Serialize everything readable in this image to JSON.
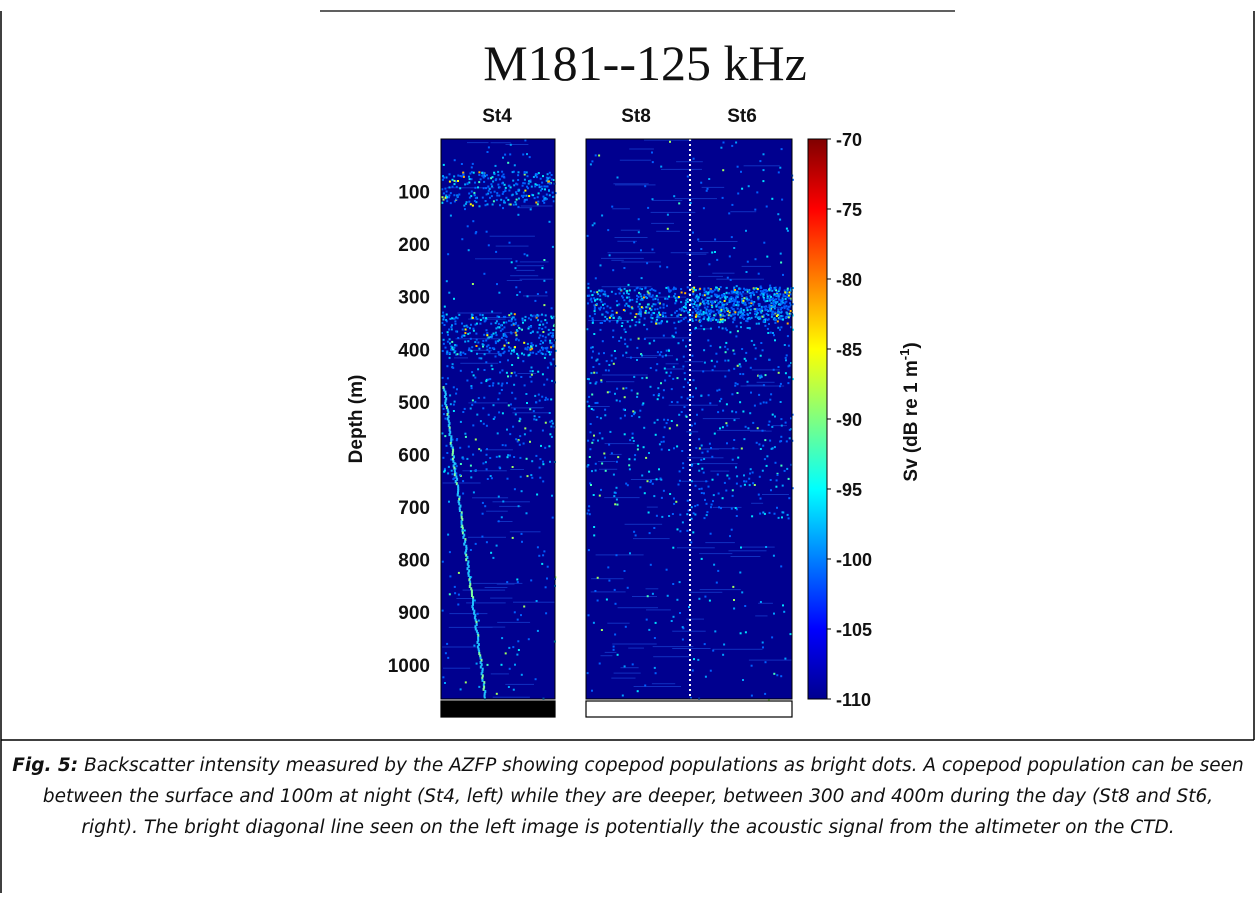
{
  "figure": {
    "title": "M181--125 kHz",
    "caption_label": "Fig. 5:",
    "caption_text": " Backscatter intensity measured by the AZFP showing copepod populations as bright dots.  A copepod population can be seen between the surface and 100m at night (St4, left) while they are deeper, between 300 and 400m during the day (St8 and St6, right).  The bright diagonal line seen on the left image is potentially the acoustic signal from the altimeter on the CTD."
  },
  "chart_data": {
    "type": "heatmap",
    "title": "M181--125 kHz",
    "ylabel": "Depth (m)",
    "yticks": [
      100,
      200,
      300,
      400,
      500,
      600,
      700,
      800,
      900,
      1000
    ],
    "ylim": [
      0,
      1065
    ],
    "y_inverted": true,
    "panels": [
      {
        "stations": [
          "St4"
        ],
        "time_of_day": "night",
        "bar_color": "#000000",
        "features": {
          "layers_m": [
            [
              60,
              120
            ],
            [
              330,
              400
            ]
          ],
          "diagonal_line": true
        }
      },
      {
        "stations": [
          "St8",
          "St6"
        ],
        "time_of_day": "day",
        "bar_color": "#ffffff",
        "features": {
          "layers_m": [
            [
              290,
              340
            ]
          ],
          "divider": "dotted"
        }
      }
    ],
    "colorbar": {
      "label": "Sv (dB re 1 m-1)",
      "label_main": "Sv (dB re 1 m",
      "label_sup": "-1",
      "label_end": ")",
      "range": [
        -110,
        -70
      ],
      "ticks": [
        -70,
        -75,
        -80,
        -85,
        -90,
        -95,
        -100,
        -105,
        -110
      ],
      "colormap": "jet"
    }
  }
}
